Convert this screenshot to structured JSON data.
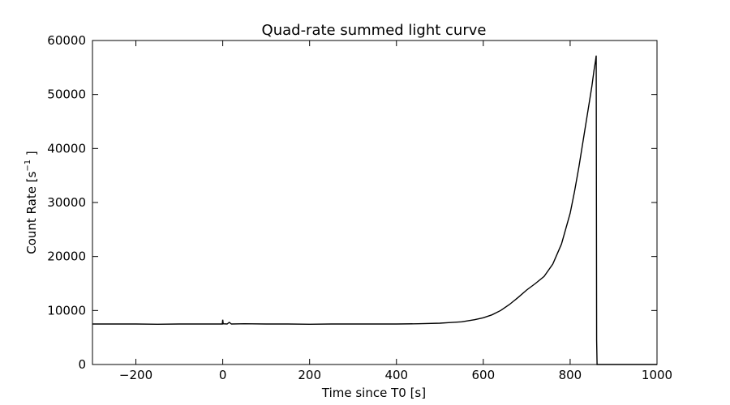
{
  "chart_data": {
    "type": "line",
    "title": "Quad-rate summed light curve",
    "xlabel": "Time since T0 [s]",
    "ylabel_main": "Count Rate [s",
    "ylabel_sup": "−1",
    "ylabel_tail": " ]",
    "xlim": [
      -300,
      1000
    ],
    "ylim": [
      0,
      60000
    ],
    "xticks": [
      -200,
      0,
      200,
      400,
      600,
      800,
      1000
    ],
    "xtick_labels": [
      "−200",
      "0",
      "200",
      "400",
      "600",
      "800",
      "1000"
    ],
    "yticks": [
      0,
      10000,
      20000,
      30000,
      40000,
      50000,
      60000
    ],
    "ytick_labels": [
      "0",
      "10000",
      "20000",
      "30000",
      "40000",
      "50000",
      "60000"
    ],
    "grid": false,
    "series": [
      {
        "line_color": "#000000",
        "x": [
          -300,
          -250,
          -200,
          -150,
          -100,
          -50,
          -1,
          0,
          1,
          10,
          15,
          20,
          50,
          100,
          150,
          200,
          250,
          300,
          350,
          400,
          450,
          500,
          520,
          550,
          580,
          600,
          620,
          640,
          660,
          680,
          700,
          720,
          740,
          760,
          780,
          800,
          810,
          820,
          830,
          840,
          850,
          855,
          858,
          860,
          861,
          862,
          1000
        ],
        "y": [
          7500,
          7500,
          7500,
          7450,
          7500,
          7500,
          7500,
          8300,
          7550,
          7500,
          7800,
          7500,
          7550,
          7500,
          7500,
          7450,
          7500,
          7500,
          7500,
          7500,
          7550,
          7650,
          7750,
          7900,
          8300,
          8650,
          9200,
          10000,
          11100,
          12400,
          13800,
          15000,
          16300,
          18600,
          22300,
          28000,
          32000,
          36500,
          41500,
          46500,
          51500,
          54500,
          56000,
          57200,
          4500,
          0,
          0
        ]
      }
    ]
  }
}
